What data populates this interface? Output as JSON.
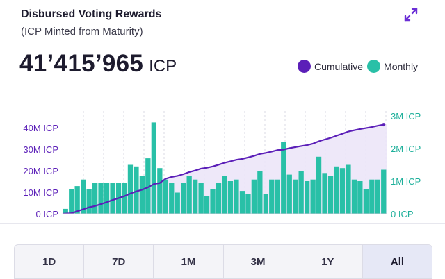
{
  "header": {
    "title": "Disbursed Voting Rewards",
    "subtitle": "(ICP Minted from Maturity)",
    "expand_icon": "expand-arrows-icon"
  },
  "total": {
    "value": "41’415’965",
    "unit": "ICP"
  },
  "legend": {
    "items": [
      {
        "label": "Cumulative",
        "color": "#5b1fb8"
      },
      {
        "label": "Monthly",
        "color": "#29c0a7"
      }
    ]
  },
  "colors": {
    "cumulative": "#5b1fb8",
    "monthly": "#29c0a7",
    "area": "#ece6f8",
    "axis_right": "#1fb09b",
    "axis_left": "#5b1fb8"
  },
  "time_ranges": {
    "options": [
      "1D",
      "7D",
      "1M",
      "3M",
      "1Y",
      "All"
    ],
    "selected": "All"
  },
  "chart_data": {
    "type": "bar",
    "series": [
      {
        "name": "Monthly",
        "axis": "right",
        "unit": "ICP",
        "values": [
          150000,
          750000,
          850000,
          1050000,
          750000,
          950000,
          950000,
          950000,
          950000,
          950000,
          950000,
          1500000,
          1450000,
          1150000,
          1700000,
          2800000,
          1400000,
          1050000,
          950000,
          650000,
          950000,
          1150000,
          1050000,
          950000,
          550000,
          750000,
          950000,
          1150000,
          1000000,
          1050000,
          700000,
          600000,
          1050000,
          1300000,
          600000,
          1050000,
          1050000,
          2200000,
          1200000,
          1050000,
          1300000,
          1000000,
          1050000,
          1750000,
          1250000,
          1150000,
          1450000,
          1400000,
          1500000,
          1050000,
          1000000,
          750000,
          1050000,
          1050000,
          1350000
        ]
      },
      {
        "name": "Cumulative",
        "axis": "left",
        "unit": "ICP",
        "type": "line",
        "values": [
          100000,
          250000,
          1200000,
          2100000,
          3000000,
          3600000,
          4500000,
          5400000,
          6400000,
          7300000,
          8200000,
          9400000,
          10400000,
          11200000,
          12300000,
          13800000,
          14300000,
          16300000,
          17100000,
          17600000,
          18400000,
          19400000,
          20100000,
          21000000,
          21400000,
          22000000,
          22800000,
          23700000,
          24400000,
          25100000,
          25500000,
          26200000,
          26900000,
          27800000,
          28300000,
          28900000,
          29600000,
          29800000,
          30500000,
          31000000,
          31500000,
          31900000,
          32600000,
          33700000,
          34500000,
          35300000,
          36300000,
          37200000,
          38200000,
          38800000,
          39400000,
          39800000,
          40300000,
          40900000,
          41415965
        ]
      }
    ],
    "y_left": {
      "ticks": [
        "0 ICP",
        "10M ICP",
        "20M ICP",
        "30M ICP",
        "40M ICP"
      ],
      "range": [
        0,
        44000000
      ]
    },
    "y_right": {
      "ticks": [
        "0 ICP",
        "1M ICP",
        "2M ICP",
        "3M ICP"
      ],
      "range": [
        0,
        3000000
      ]
    },
    "grid": "vertical-dashed",
    "legend_position": "top-right"
  }
}
